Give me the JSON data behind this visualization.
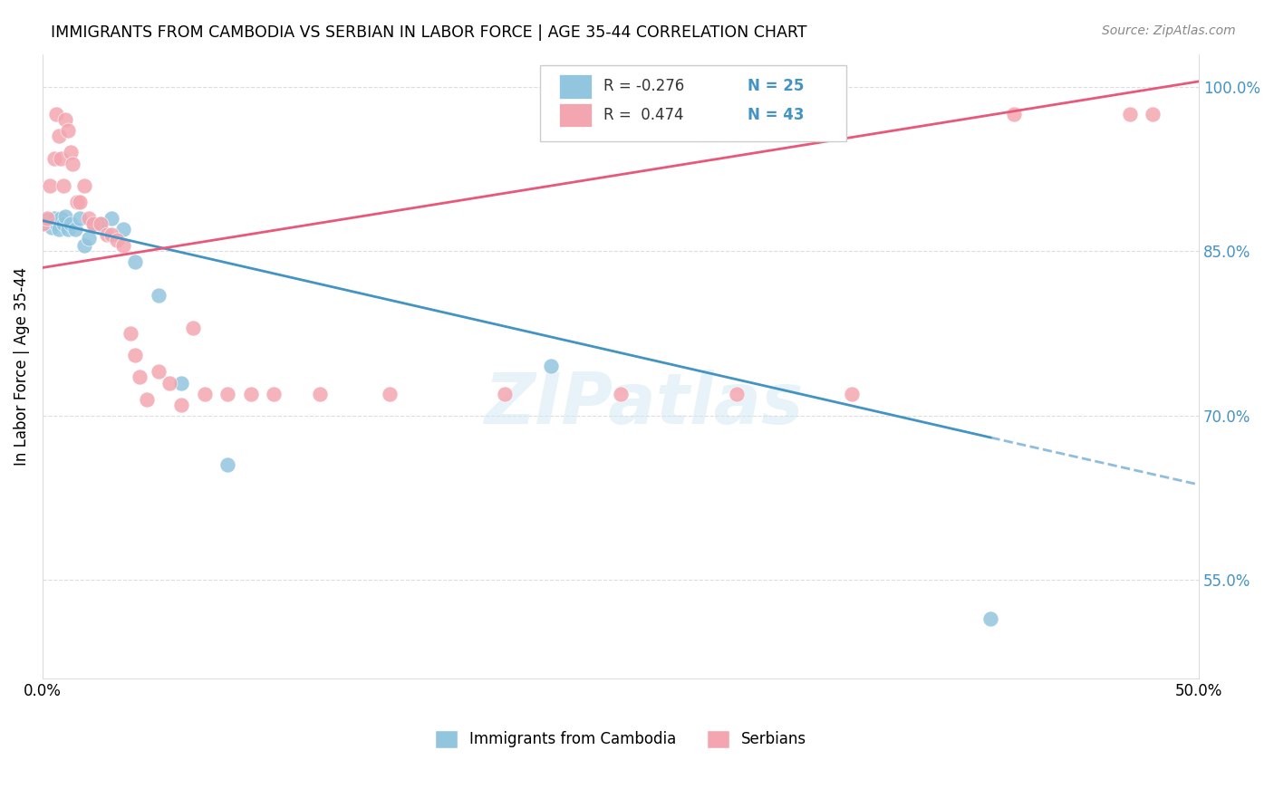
{
  "title": "IMMIGRANTS FROM CAMBODIA VS SERBIAN IN LABOR FORCE | AGE 35-44 CORRELATION CHART",
  "source": "Source: ZipAtlas.com",
  "ylabel": "In Labor Force | Age 35-44",
  "xlim": [
    0.0,
    0.5
  ],
  "ylim": [
    0.46,
    1.03
  ],
  "r_cambodia": -0.276,
  "n_cambodia": 25,
  "r_serbian": 0.474,
  "n_serbian": 43,
  "cambodia_color": "#92C5DE",
  "serbian_color": "#F4A6B0",
  "cambodia_line_color": "#4393C3",
  "serbian_line_color": "#E8587A",
  "watermark": "ZIPatlas",
  "cambodia_scatter_x": [
    0.0,
    0.002,
    0.004,
    0.005,
    0.006,
    0.007,
    0.008,
    0.009,
    0.01,
    0.011,
    0.012,
    0.014,
    0.016,
    0.018,
    0.02,
    0.022,
    0.025,
    0.03,
    0.035,
    0.04,
    0.05,
    0.06,
    0.08,
    0.22,
    0.41
  ],
  "cambodia_scatter_y": [
    0.875,
    0.878,
    0.872,
    0.88,
    0.875,
    0.87,
    0.88,
    0.875,
    0.882,
    0.87,
    0.875,
    0.87,
    0.88,
    0.855,
    0.862,
    0.875,
    0.875,
    0.88,
    0.87,
    0.84,
    0.81,
    0.73,
    0.655,
    0.745,
    0.515
  ],
  "serbian_scatter_x": [
    0.0,
    0.002,
    0.003,
    0.005,
    0.006,
    0.007,
    0.008,
    0.009,
    0.01,
    0.011,
    0.012,
    0.013,
    0.015,
    0.016,
    0.018,
    0.02,
    0.022,
    0.025,
    0.028,
    0.03,
    0.032,
    0.035,
    0.038,
    0.04,
    0.042,
    0.045,
    0.05,
    0.055,
    0.06,
    0.065,
    0.07,
    0.08,
    0.09,
    0.1,
    0.12,
    0.15,
    0.2,
    0.25,
    0.3,
    0.35,
    0.42,
    0.47,
    0.48
  ],
  "serbian_scatter_y": [
    0.875,
    0.88,
    0.91,
    0.935,
    0.975,
    0.955,
    0.935,
    0.91,
    0.97,
    0.96,
    0.94,
    0.93,
    0.895,
    0.895,
    0.91,
    0.88,
    0.875,
    0.875,
    0.865,
    0.865,
    0.86,
    0.855,
    0.775,
    0.755,
    0.735,
    0.715,
    0.74,
    0.73,
    0.71,
    0.78,
    0.72,
    0.72,
    0.72,
    0.72,
    0.72,
    0.72,
    0.72,
    0.72,
    0.72,
    0.72,
    0.975,
    0.975,
    0.975
  ],
  "camb_line_x0": 0.0,
  "camb_line_y0": 0.878,
  "camb_line_x1": 0.41,
  "camb_line_y1": 0.68,
  "camb_line_dash_x0": 0.41,
  "camb_line_dash_y0": 0.68,
  "camb_line_dash_x1": 0.5,
  "camb_line_dash_y1": 0.637,
  "serb_line_x0": 0.0,
  "serb_line_y0": 0.835,
  "serb_line_x1": 0.5,
  "serb_line_y1": 1.005
}
